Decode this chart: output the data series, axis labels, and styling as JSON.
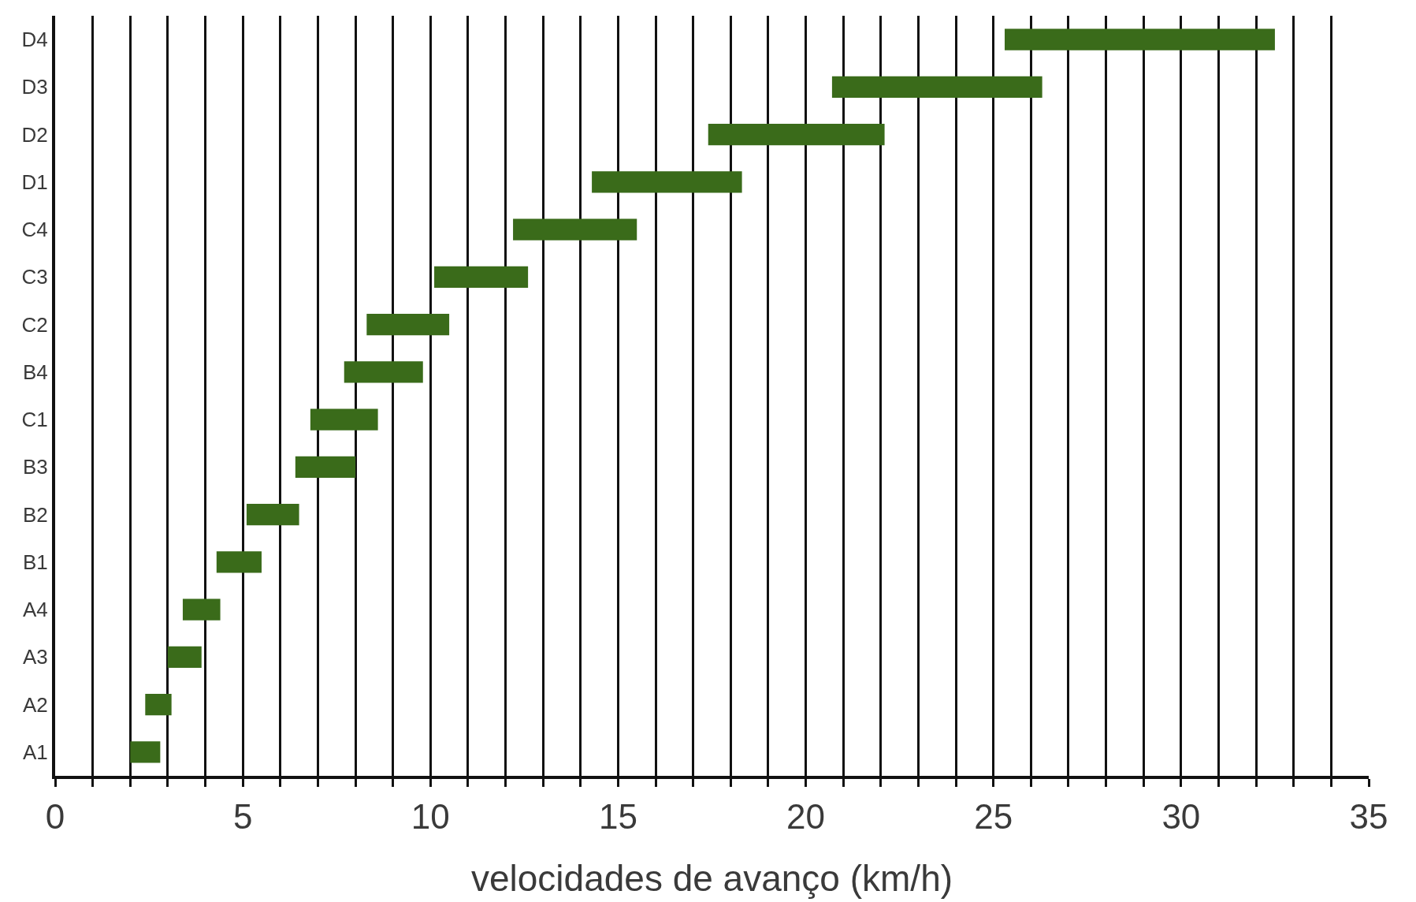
{
  "chart_data": {
    "type": "bar",
    "orientation": "horizontal",
    "xlabel": "velocidades de avanço (km/h)",
    "categories": [
      "D4",
      "D3",
      "D2",
      "D1",
      "C4",
      "C3",
      "C2",
      "B4",
      "C1",
      "B3",
      "B2",
      "B1",
      "A4",
      "A3",
      "A2",
      "A1"
    ],
    "base": [
      25.3,
      20.7,
      17.4,
      14.3,
      12.2,
      10.1,
      8.3,
      7.7,
      6.8,
      6.4,
      5.1,
      4.3,
      3.4,
      3.0,
      2.4,
      2.0
    ],
    "values": [
      7.2,
      5.6,
      4.7,
      4.0,
      3.3,
      2.5,
      2.2,
      2.1,
      1.8,
      1.6,
      1.4,
      1.2,
      1.0,
      0.9,
      0.7,
      0.8
    ],
    "color": "#3a6b1a",
    "xlim": [
      0,
      35
    ],
    "xticks": [
      0,
      {
        "value": 1,
        "label": null
      },
      {
        "value": 2,
        "label": null
      },
      {
        "value": 3,
        "label": null
      },
      {
        "value": 4,
        "label": null
      },
      5,
      {
        "value": 6,
        "label": null
      },
      {
        "value": 7,
        "label": null
      },
      {
        "value": 8,
        "label": null
      },
      {
        "value": 9,
        "label": null
      },
      10,
      {
        "value": 11,
        "label": null
      },
      {
        "value": 12,
        "label": null
      },
      {
        "value": 13,
        "label": null
      },
      {
        "value": 14,
        "label": null
      },
      15,
      {
        "value": 16,
        "label": null
      },
      {
        "value": 17,
        "label": null
      },
      {
        "value": 18,
        "label": null
      },
      {
        "value": 19,
        "label": null
      },
      20,
      {
        "value": 21,
        "label": null
      },
      {
        "value": 22,
        "label": null
      },
      {
        "value": 23,
        "label": null
      },
      {
        "value": 24,
        "label": null
      },
      25,
      {
        "value": 26,
        "label": null
      },
      {
        "value": 27,
        "label": null
      },
      {
        "value": 28,
        "label": null
      },
      {
        "value": 29,
        "label": null
      },
      30,
      {
        "value": 31,
        "label": null
      },
      {
        "value": 32,
        "label": null
      },
      {
        "value": 33,
        "label": null
      },
      {
        "value": 34,
        "label": null
      },
      35
    ],
    "grid": "x"
  }
}
